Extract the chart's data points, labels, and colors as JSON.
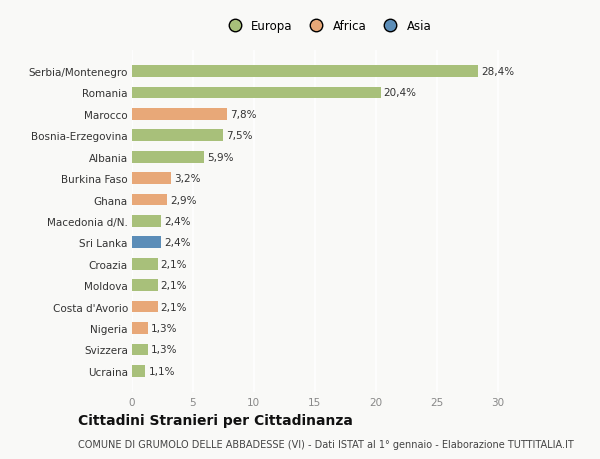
{
  "categories": [
    "Ucraina",
    "Svizzera",
    "Nigeria",
    "Costa d'Avorio",
    "Moldova",
    "Croazia",
    "Sri Lanka",
    "Macedonia d/N.",
    "Ghana",
    "Burkina Faso",
    "Albania",
    "Bosnia-Erzegovina",
    "Marocco",
    "Romania",
    "Serbia/Montenegro"
  ],
  "values": [
    1.1,
    1.3,
    1.3,
    2.1,
    2.1,
    2.1,
    2.4,
    2.4,
    2.9,
    3.2,
    5.9,
    7.5,
    7.8,
    20.4,
    28.4
  ],
  "labels": [
    "1,1%",
    "1,3%",
    "1,3%",
    "2,1%",
    "2,1%",
    "2,1%",
    "2,4%",
    "2,4%",
    "2,9%",
    "3,2%",
    "5,9%",
    "7,5%",
    "7,8%",
    "20,4%",
    "28,4%"
  ],
  "continent": [
    "Europa",
    "Europa",
    "Africa",
    "Africa",
    "Europa",
    "Europa",
    "Asia",
    "Europa",
    "Africa",
    "Africa",
    "Europa",
    "Europa",
    "Africa",
    "Europa",
    "Europa"
  ],
  "colors": {
    "Europa": "#a8c07a",
    "Africa": "#e8a878",
    "Asia": "#5b8db8"
  },
  "xlim": [
    0,
    32
  ],
  "xticks": [
    0,
    5,
    10,
    15,
    20,
    25,
    30
  ],
  "title": "Cittadini Stranieri per Cittadinanza",
  "subtitle": "COMUNE DI GRUMOLO DELLE ABBADESSE (VI) - Dati ISTAT al 1° gennaio - Elaborazione TUTTITALIA.IT",
  "background_color": "#f9f9f7",
  "bar_height": 0.55,
  "grid_color": "#ffffff",
  "text_color": "#333333",
  "title_fontsize": 10,
  "subtitle_fontsize": 7,
  "tick_fontsize": 7.5,
  "label_fontsize": 7.5,
  "legend_fontsize": 8.5
}
